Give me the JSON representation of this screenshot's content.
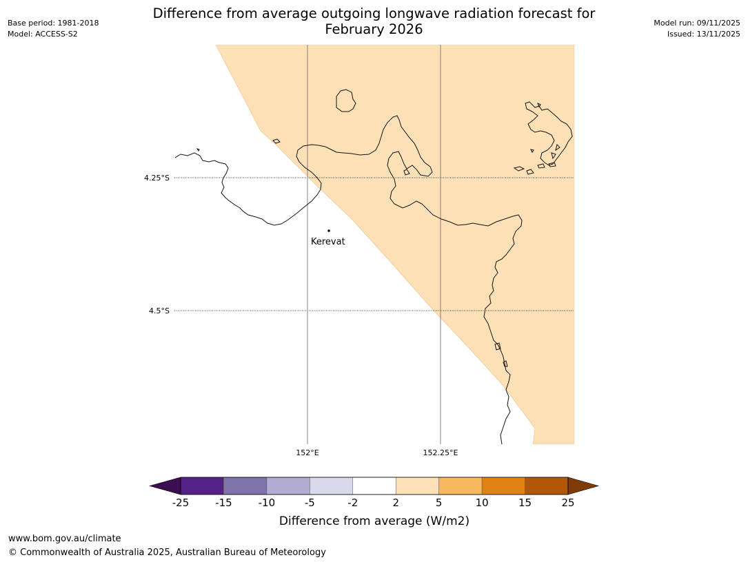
{
  "header": {
    "base_period": "Base period: 1981-2018",
    "model": "Model: ACCESS-S2",
    "title_line1": "Difference from average outgoing longwave radiation forecast for",
    "title_line2": "February 2026",
    "model_run": "Model run: 09/11/2025",
    "issued": "Issued: 13/11/2025"
  },
  "map": {
    "latitude_labels": [
      "4.25°S",
      "4.5°S"
    ],
    "longitude_labels": [
      "152°E",
      "152.25°E"
    ],
    "place": "Kerevat",
    "shading_color": "#fde0b6",
    "shading_category": "2 to 5"
  },
  "colorbar": {
    "label": "Difference from average (W/m2)",
    "ticks": [
      "-25",
      "-15",
      "-10",
      "-5",
      "-2",
      "2",
      "5",
      "10",
      "15",
      "25"
    ],
    "colors": [
      "#3b0f51",
      "#542189",
      "#8073ac",
      "#b2abd2",
      "#d8daeb",
      "#ffffff",
      "#fde0b6",
      "#f8b85e",
      "#e08214",
      "#b35806",
      "#7f3b08"
    ]
  },
  "footer": {
    "url": "www.bom.gov.au/climate",
    "copyright": "© Commonwealth of Australia 2025, Australian Bureau of Meteorology"
  }
}
